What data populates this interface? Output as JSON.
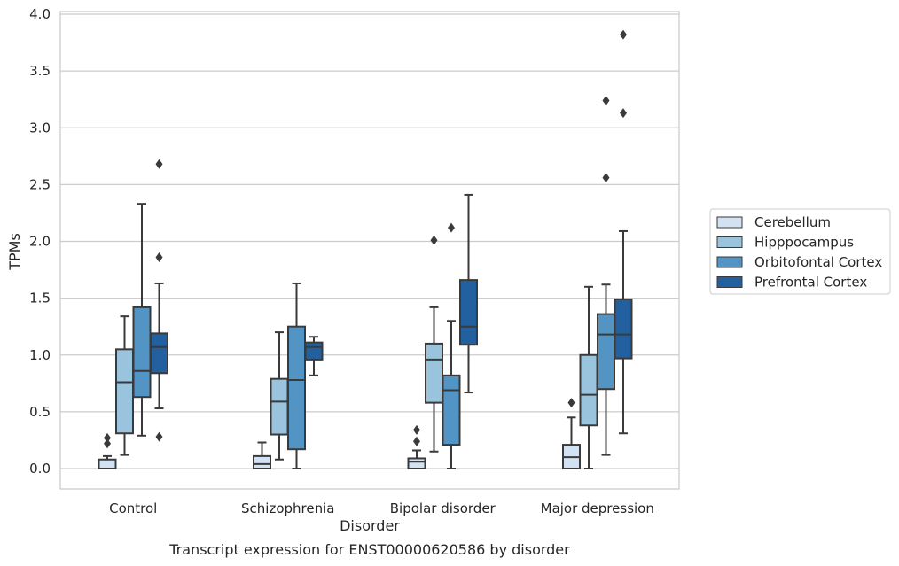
{
  "chart_data": {
    "type": "box",
    "caption": "Transcript expression for ENST00000620586 by disorder",
    "xlabel": "Disorder",
    "ylabel": "TPMs",
    "ylim": [
      -0.18,
      4.02
    ],
    "yticks": [
      "0.0",
      "0.5",
      "1.0",
      "1.5",
      "2.0",
      "2.5",
      "3.0",
      "3.5",
      "4.0"
    ],
    "grid": "horizontal",
    "legend_position": "right",
    "categories": [
      "Control",
      "Schizophrenia",
      "Bipolar disorder",
      "Major depression"
    ],
    "series": [
      {
        "name": "Cerebellum",
        "color": "#d3e2f3",
        "boxes": [
          {
            "whislo": 0.0,
            "q1": 0.0,
            "med": 0.0,
            "q3": 0.08,
            "whishi": 0.11,
            "fliers": [
              0.22,
              0.27
            ]
          },
          {
            "whislo": 0.0,
            "q1": 0.0,
            "med": 0.04,
            "q3": 0.11,
            "whishi": 0.23,
            "fliers": []
          },
          {
            "whislo": 0.0,
            "q1": 0.0,
            "med": 0.06,
            "q3": 0.09,
            "whishi": 0.16,
            "fliers": [
              0.24,
              0.34
            ]
          },
          {
            "whislo": 0.0,
            "q1": 0.0,
            "med": 0.1,
            "q3": 0.21,
            "whishi": 0.45,
            "fliers": [
              0.58
            ]
          }
        ]
      },
      {
        "name": "Hipppocampus",
        "color": "#9ac4dd",
        "boxes": [
          {
            "whislo": 0.12,
            "q1": 0.31,
            "med": 0.76,
            "q3": 1.05,
            "whishi": 1.34,
            "fliers": []
          },
          {
            "whislo": 0.08,
            "q1": 0.3,
            "med": 0.59,
            "q3": 0.79,
            "whishi": 1.2,
            "fliers": []
          },
          {
            "whislo": 0.15,
            "q1": 0.58,
            "med": 0.96,
            "q3": 1.1,
            "whishi": 1.42,
            "fliers": [
              2.01
            ]
          },
          {
            "whislo": 0.0,
            "q1": 0.38,
            "med": 0.65,
            "q3": 1.0,
            "whishi": 1.6,
            "fliers": []
          }
        ]
      },
      {
        "name": "Orbitofontal Cortex",
        "color": "#5294c4",
        "boxes": [
          {
            "whislo": 0.29,
            "q1": 0.63,
            "med": 0.86,
            "q3": 1.42,
            "whishi": 2.33,
            "fliers": []
          },
          {
            "whislo": 0.0,
            "q1": 0.17,
            "med": 0.78,
            "q3": 1.25,
            "whishi": 1.63,
            "fliers": []
          },
          {
            "whislo": 0.0,
            "q1": 0.21,
            "med": 0.69,
            "q3": 0.82,
            "whishi": 1.3,
            "fliers": [
              2.12
            ]
          },
          {
            "whislo": 0.12,
            "q1": 0.7,
            "med": 1.18,
            "q3": 1.36,
            "whishi": 1.62,
            "fliers": [
              2.56,
              3.24
            ]
          }
        ]
      },
      {
        "name": "Prefrontal Cortex",
        "color": "#23609f",
        "boxes": [
          {
            "whislo": 0.53,
            "q1": 0.84,
            "med": 1.07,
            "q3": 1.19,
            "whishi": 1.63,
            "fliers": [
              0.28,
              1.86,
              2.68
            ]
          },
          {
            "whislo": 0.82,
            "q1": 0.96,
            "med": 1.07,
            "q3": 1.11,
            "whishi": 1.16,
            "fliers": []
          },
          {
            "whislo": 0.67,
            "q1": 1.09,
            "med": 1.25,
            "q3": 1.66,
            "whishi": 2.41,
            "fliers": []
          },
          {
            "whislo": 0.31,
            "q1": 0.97,
            "med": 1.18,
            "q3": 1.49,
            "whishi": 2.09,
            "fliers": [
              3.13,
              3.82
            ]
          }
        ]
      }
    ]
  }
}
